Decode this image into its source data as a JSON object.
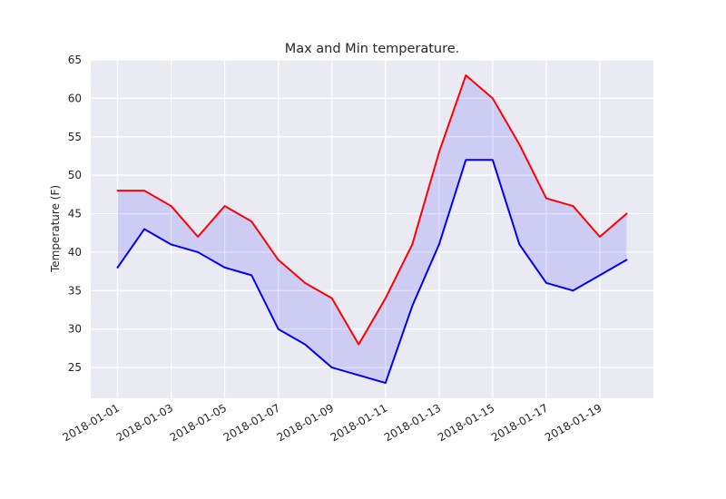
{
  "chart_data": {
    "type": "line",
    "title": "Max and Min temperature.",
    "xlabel": "",
    "ylabel": "Temperature (F)",
    "ylim": [
      21,
      65
    ],
    "yticks": [
      25,
      30,
      35,
      40,
      45,
      50,
      55,
      60,
      65
    ],
    "x": [
      "2018-01-01",
      "2018-01-02",
      "2018-01-03",
      "2018-01-04",
      "2018-01-05",
      "2018-01-06",
      "2018-01-07",
      "2018-01-08",
      "2018-01-09",
      "2018-01-10",
      "2018-01-11",
      "2018-01-12",
      "2018-01-13",
      "2018-01-14",
      "2018-01-15",
      "2018-01-16",
      "2018-01-17",
      "2018-01-18",
      "2018-01-19",
      "2018-01-20"
    ],
    "xticks": [
      "2018-01-01",
      "2018-01-03",
      "2018-01-05",
      "2018-01-07",
      "2018-01-09",
      "2018-01-11",
      "2018-01-13",
      "2018-01-15",
      "2018-01-17",
      "2018-01-19"
    ],
    "xlim": [
      "2017-12-31",
      "2018-01-21"
    ],
    "series": [
      {
        "values": [
          48,
          48,
          46,
          42,
          46,
          44,
          39,
          36,
          34,
          28,
          34,
          41,
          53,
          63,
          60,
          54,
          47,
          46,
          42,
          45
        ],
        "color": "#ff0000"
      },
      {
        "values": [
          38,
          43,
          41,
          40,
          38,
          37,
          30,
          28,
          25,
          24,
          23,
          33,
          41,
          52,
          52,
          41,
          36,
          35,
          37,
          39
        ],
        "color": "#0000ff"
      }
    ],
    "fill_between": {
      "color": "#0000ff",
      "opacity": 0.12
    },
    "grid": true,
    "background": "#eaeaf2"
  }
}
